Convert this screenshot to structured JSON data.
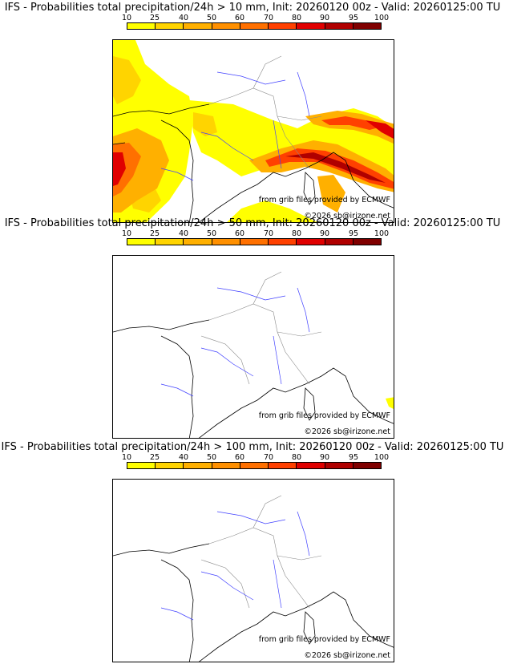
{
  "colorbar": {
    "ticks": [
      "10",
      "25",
      "40",
      "50",
      "60",
      "70",
      "80",
      "90",
      "95",
      "100"
    ],
    "colors": [
      "#ffff00",
      "#ffd400",
      "#ffb000",
      "#ff9000",
      "#ff7000",
      "#ff4000",
      "#e00000",
      "#b00000",
      "#800000"
    ]
  },
  "panels": [
    {
      "title": "IFS - Probabilities total precipitation/24h > 10 mm, Init: 20260120 00z - Valid: 20260125:00 TU",
      "source": "from grib files provided by ECMWF",
      "copyright": "©2026 sb@irizone.net"
    },
    {
      "title": "IFS - Probabilities total precipitation/24h > 50 mm, Init: 20260120 00z - Valid: 20260125:00 TU",
      "source": "from grib files provided by ECMWF",
      "copyright": "©2026 sb@irizone.net"
    },
    {
      "title": "IFS - Probabilities total precipitation/24h > 100 mm, Init: 20260120 00z - Valid: 20260125:00 TU",
      "source": "from grib files provided by ECMWF",
      "copyright": "©2026 sb@irizone.net"
    }
  ]
}
